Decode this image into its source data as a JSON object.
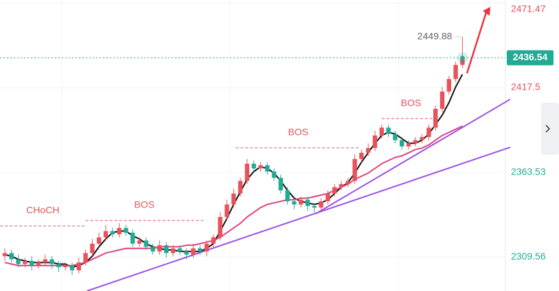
{
  "chart_data": {
    "type": "candlestick",
    "ylim": [
      2287.8,
      2473.4
    ],
    "yticks": [
      2471.47,
      2417.5,
      2363.53,
      2309.56
    ],
    "ytick_colors": [
      "#e5535b",
      "#e5535b",
      "#22ab94",
      "#22ab94"
    ],
    "grid": true,
    "up_color": "#e5535b",
    "down_color": "#22ab94",
    "open": [
      2310,
      2312,
      2308,
      2305,
      2307,
      2304,
      2306,
      2308,
      2305,
      2303,
      2304,
      2301,
      2306,
      2312,
      2318,
      2322,
      2326,
      2324,
      2328,
      2325,
      2318,
      2320,
      2316,
      2313,
      2317,
      2312,
      2315,
      2313,
      2311,
      2315,
      2313,
      2318,
      2322,
      2335,
      2343,
      2350,
      2358,
      2369,
      2366,
      2368,
      2364,
      2360,
      2352,
      2345,
      2343,
      2346,
      2342,
      2341,
      2345,
      2350,
      2354,
      2356,
      2358,
      2372,
      2376,
      2379,
      2387,
      2392,
      2388,
      2384,
      2380,
      2382,
      2384,
      2386,
      2392,
      2404,
      2415,
      2423,
      2432
    ],
    "high": [
      2315,
      2314,
      2311,
      2309,
      2310,
      2308,
      2311,
      2310,
      2307,
      2306,
      2306,
      2309,
      2314,
      2321,
      2325,
      2330,
      2328,
      2331,
      2330,
      2327,
      2322,
      2322,
      2318,
      2320,
      2319,
      2317,
      2317,
      2315,
      2318,
      2317,
      2320,
      2324,
      2338,
      2346,
      2353,
      2360,
      2372,
      2371,
      2370,
      2370,
      2366,
      2362,
      2354,
      2347,
      2348,
      2348,
      2344,
      2347,
      2352,
      2356,
      2358,
      2360,
      2375,
      2378,
      2382,
      2390,
      2394,
      2394,
      2390,
      2386,
      2384,
      2386,
      2388,
      2394,
      2406,
      2418,
      2425,
      2434,
      2449.88
    ],
    "low": [
      2307,
      2306,
      2303,
      2303,
      2301,
      2302,
      2304,
      2302,
      2300,
      2301,
      2298,
      2299,
      2304,
      2310,
      2316,
      2320,
      2322,
      2322,
      2323,
      2316,
      2316,
      2314,
      2311,
      2311,
      2309,
      2310,
      2311,
      2308,
      2309,
      2311,
      2310,
      2315,
      2320,
      2333,
      2341,
      2348,
      2356,
      2364,
      2364,
      2362,
      2358,
      2350,
      2343,
      2340,
      2341,
      2339,
      2338,
      2339,
      2343,
      2348,
      2352,
      2354,
      2356,
      2370,
      2374,
      2377,
      2385,
      2386,
      2382,
      2378,
      2378,
      2380,
      2382,
      2384,
      2390,
      2402,
      2413,
      2421,
      2430
    ],
    "close": [
      2312,
      2308,
      2305,
      2307,
      2304,
      2306,
      2308,
      2305,
      2303,
      2304,
      2301,
      2306,
      2312,
      2318,
      2322,
      2326,
      2324,
      2328,
      2325,
      2318,
      2320,
      2316,
      2313,
      2317,
      2312,
      2315,
      2313,
      2311,
      2315,
      2313,
      2318,
      2322,
      2335,
      2343,
      2350,
      2358,
      2369,
      2366,
      2368,
      2364,
      2360,
      2352,
      2345,
      2343,
      2346,
      2342,
      2341,
      2345,
      2350,
      2354,
      2356,
      2358,
      2372,
      2376,
      2379,
      2387,
      2392,
      2388,
      2384,
      2380,
      2382,
      2384,
      2386,
      2392,
      2404,
      2415,
      2423,
      2432,
      2436.54
    ],
    "series": [
      {
        "color": "#111111",
        "values": [
          2311,
          2310,
          2308,
          2307,
          2306,
          2306,
          2306,
          2306,
          2305,
          2305,
          2303,
          2304,
          2306,
          2310,
          2316,
          2321,
          2325,
          2326,
          2326,
          2323,
          2321,
          2318,
          2316,
          2315,
          2314,
          2314,
          2313,
          2313,
          2313,
          2313,
          2315,
          2318,
          2326,
          2334,
          2343,
          2351,
          2359,
          2364,
          2367,
          2366,
          2363,
          2358,
          2352,
          2347,
          2345,
          2344,
          2343,
          2344,
          2346,
          2350,
          2354,
          2357,
          2363,
          2370,
          2376,
          2382,
          2387,
          2389,
          2388,
          2385,
          2382,
          2382,
          2384,
          2388,
          2394,
          2400,
          2408,
          2418,
          2426
        ]
      },
      {
        "color": "#e0417f",
        "values": [
          2306,
          2305,
          2304,
          2304,
          2304,
          2304,
          2304,
          2304,
          2304,
          2304,
          2304,
          2305,
          2306,
          2308,
          2310,
          2312,
          2313,
          2314,
          2315,
          2315,
          2315,
          2315,
          2315,
          2316,
          2316,
          2316,
          2316,
          2317,
          2317,
          2318,
          2319,
          2320,
          2322,
          2325,
          2328,
          2331,
          2335,
          2338,
          2341,
          2343,
          2344,
          2345,
          2346,
          2346,
          2347,
          2347,
          2348,
          2349,
          2350,
          2352,
          2354,
          2356,
          2359,
          2361,
          2363,
          2366,
          2369,
          2371,
          2373,
          2374,
          2376,
          2378,
          2379,
          2381,
          2384,
          2387,
          2389,
          2391,
          2393
        ]
      }
    ],
    "trendlines": [
      {
        "color": "#9b4fe8",
        "points": [
          [
            12.2,
            2287.8
          ],
          [
            75.1,
            2379.5
          ]
        ]
      },
      {
        "color": "#9b4fe8",
        "points": [
          [
            46.2,
            2337.1
          ],
          [
            75.1,
            2410.1
          ]
        ]
      }
    ],
    "levels": [
      {
        "label": "CHoCH",
        "price": 2329.3,
        "from": -0.7,
        "to": 12
      },
      {
        "label": "BOS",
        "price": 2332.8,
        "from": 12,
        "to": 29.5
      },
      {
        "label": "BOS",
        "price": 2379.1,
        "from": 34.3,
        "to": 52.9
      },
      {
        "label": "BOS",
        "price": 2397.8,
        "from": 56,
        "to": 64.7
      }
    ],
    "level_color": "#e5535b",
    "last_color": "#22ab94"
  }
}
